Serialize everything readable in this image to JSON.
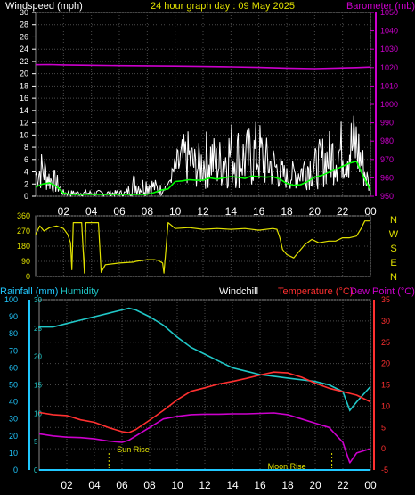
{
  "header": {
    "wind_title": "Windspeed (mph)",
    "date_title": "24 hour graph day : 09 May 2025",
    "baro_title": "Barometer (mb)"
  },
  "panel3_header": {
    "rain_title": "Rainfall (mm)",
    "hum_title": "Humidity",
    "wc_title": "Windchill",
    "temp_title": "Temperature (°C)",
    "dew_title": "Dew Point (°C)"
  },
  "x_ticks": [
    "02",
    "04",
    "06",
    "08",
    "10",
    "12",
    "14",
    "16",
    "18",
    "20",
    "22",
    "00"
  ],
  "compass": [
    "N",
    "W",
    "S",
    "E",
    "N"
  ],
  "annotations": {
    "sunrise": "Sun Rise",
    "moonrise": "Moon Rise"
  },
  "colors": {
    "wind": "#ffffff",
    "gust": "#ffffff",
    "wind_avg": "#00ff00",
    "baro": "#cc00cc",
    "direction": "#e0e000",
    "humidity": "#20c8c8",
    "temperature": "#ff3030",
    "dewpoint": "#cc00cc",
    "rain": "#20c8ff",
    "grid": "#4a4a4a"
  },
  "chart_data": [
    {
      "type": "line",
      "name_key": "wind_baro",
      "xlabel": "",
      "ylabel": "Windspeed (mph)",
      "ylim": [
        0,
        30
      ],
      "y2lim": [
        950,
        1050
      ],
      "x_ticks": [
        "02",
        "04",
        "06",
        "08",
        "10",
        "12",
        "14",
        "16",
        "18",
        "20",
        "22",
        "00"
      ],
      "y_ticks": [
        0,
        2,
        4,
        6,
        8,
        10,
        12,
        14,
        16,
        18,
        20,
        22,
        24,
        26,
        28,
        30
      ],
      "y2_ticks": [
        950,
        960,
        970,
        980,
        990,
        1000,
        1010,
        1020,
        1030,
        1040,
        1050
      ],
      "series": [
        {
          "name": "Windspeed (mph)",
          "role": "gust_envelope",
          "x": [
            0,
            0.5,
            1,
            1.5,
            2,
            2.5,
            3,
            3.5,
            4,
            4.5,
            5,
            5.5,
            6,
            6.5,
            7,
            7.5,
            8,
            8.5,
            9,
            9.5,
            10,
            10.5,
            11,
            11.5,
            12,
            12.5,
            13,
            13.5,
            14,
            14.5,
            15,
            15.5,
            16,
            16.5,
            17,
            17.5,
            18,
            18.5,
            19,
            19.5,
            20,
            20.5,
            21,
            21.5,
            22,
            22.5,
            23,
            23.5,
            24
          ],
          "y": [
            6,
            8,
            5,
            4,
            1,
            1,
            1,
            1,
            1,
            1,
            1,
            1,
            1,
            1,
            4,
            3,
            4,
            3,
            2,
            2,
            7,
            10,
            11,
            8,
            10,
            12,
            9,
            11,
            13,
            12,
            11,
            12,
            13,
            10,
            9,
            7,
            5,
            6,
            7,
            9,
            8,
            10,
            11,
            12,
            13,
            14,
            15,
            8,
            2
          ]
        },
        {
          "name": "Windspeed (mph)",
          "role": "wind_floor",
          "x": [
            0,
            2,
            3,
            5,
            7,
            9,
            9.5,
            12,
            15,
            18,
            20,
            22,
            23.5,
            24
          ],
          "y": [
            1,
            0,
            0,
            0,
            0,
            0,
            2,
            1,
            1,
            1,
            1,
            2,
            1,
            0
          ]
        },
        {
          "name": "",
          "role": "average",
          "x": [
            0,
            0.5,
            1,
            1.5,
            2,
            2.5,
            3,
            4,
            5,
            6,
            7,
            8,
            8.5,
            9,
            9.5,
            10,
            10.5,
            11,
            11.5,
            12,
            12.5,
            13,
            13.5,
            14,
            14.5,
            15,
            15.5,
            16,
            16.5,
            17,
            17.5,
            18,
            18.5,
            19,
            19.5,
            20,
            20.5,
            21,
            21.5,
            22,
            22.5,
            23,
            23.5,
            24
          ],
          "y": [
            1.5,
            2,
            2.2,
            1.6,
            0.5,
            0.3,
            0.3,
            0.3,
            0.3,
            0.3,
            0.3,
            0.3,
            0.6,
            1,
            1.2,
            2.4,
            2.5,
            2.7,
            2.6,
            2.6,
            3,
            2.8,
            3,
            3.2,
            3.1,
            2.9,
            3.3,
            3.2,
            3.1,
            3.2,
            2.8,
            2.1,
            1.8,
            1.9,
            2.4,
            3.1,
            3.4,
            3.9,
            4.4,
            4.9,
            5.4,
            5.7,
            3.2,
            1
          ]
        },
        {
          "name": "Barometer (mb)",
          "role": "barometer_axis2",
          "x": [
            0,
            1,
            2,
            4,
            6,
            8,
            10,
            12,
            14,
            16,
            18,
            20,
            22,
            23,
            24
          ],
          "y": [
            1021.5,
            1021.6,
            1021.4,
            1021.2,
            1021,
            1020.9,
            1020.8,
            1020.6,
            1020.4,
            1020.1,
            1019.7,
            1019.4,
            1019.8,
            1020,
            1020.3
          ]
        }
      ]
    },
    {
      "type": "line",
      "name_key": "direction",
      "ylabel": "",
      "ylim": [
        0,
        360
      ],
      "y_ticks": [
        0,
        90,
        180,
        270,
        360
      ],
      "series": [
        {
          "name": "",
          "x": [
            0,
            0.3,
            0.6,
            1,
            1.5,
            2,
            2.3,
            2.5,
            2.6,
            2.7,
            3.3,
            3.5,
            3.6,
            4.2,
            4.5,
            4.7,
            5,
            6,
            7,
            7.2,
            8,
            8.5,
            8.8,
            9.1,
            9.2,
            9.5,
            10,
            11,
            12,
            13,
            14,
            15,
            16,
            17,
            17.3,
            17.5,
            17.7,
            18,
            18.5,
            19,
            19.3,
            19.8,
            20.3,
            21,
            21.5,
            22,
            22.5,
            23,
            23.3,
            23.6,
            24
          ],
          "y": [
            250,
            300,
            270,
            290,
            300,
            285,
            250,
            200,
            40,
            320,
            320,
            20,
            320,
            320,
            320,
            25,
            70,
            80,
            85,
            90,
            100,
            100,
            95,
            80,
            20,
            320,
            285,
            290,
            280,
            285,
            280,
            285,
            275,
            285,
            280,
            230,
            160,
            130,
            110,
            160,
            190,
            220,
            200,
            210,
            210,
            230,
            230,
            240,
            280,
            330,
            330
          ]
        }
      ]
    },
    {
      "type": "line",
      "name_key": "temp_hum_rain",
      "ylim": [
        -5,
        35
      ],
      "y_ticks": [
        -5,
        0,
        5,
        10,
        15,
        20,
        25,
        30,
        35
      ],
      "y_left_rain_ticks": [
        0,
        10,
        20,
        30,
        40,
        50,
        60,
        70,
        80,
        90,
        100
      ],
      "y_left_hum_ticks": [
        0,
        5,
        10,
        15,
        20,
        25,
        30
      ],
      "series": [
        {
          "name": "Humidity",
          "x": [
            0,
            1,
            2,
            3,
            4,
            5,
            6,
            6.5,
            7,
            8,
            9,
            10,
            11,
            12,
            13,
            14,
            15,
            16,
            17,
            18,
            19,
            20,
            21,
            22,
            22.5,
            23,
            24
          ],
          "y": [
            84,
            84,
            86,
            88,
            90,
            92,
            94,
            95,
            94,
            90,
            85,
            78,
            72,
            68,
            64,
            60,
            58,
            56,
            55,
            54,
            53,
            52,
            50,
            46,
            35,
            40,
            49
          ]
        },
        {
          "name": "Temperature (°C)",
          "x": [
            0,
            1,
            2,
            3,
            4,
            5,
            6,
            6.5,
            7,
            8,
            9,
            10,
            11,
            12,
            13,
            14,
            15,
            16,
            17,
            18,
            19,
            20,
            21,
            22,
            23,
            24
          ],
          "y": [
            8.5,
            8,
            7.8,
            6.8,
            6.2,
            5,
            4,
            3.8,
            4.5,
            6.7,
            9,
            11.5,
            13.5,
            14.3,
            15.2,
            15.8,
            16.5,
            17.3,
            18,
            17.8,
            16.8,
            15.4,
            14.2,
            13.4,
            12.6,
            11
          ]
        },
        {
          "name": "Dew Point (°C)",
          "x": [
            0,
            1,
            2,
            3,
            4,
            5,
            6,
            6.5,
            7,
            8,
            9,
            10,
            11,
            12,
            13,
            14,
            15,
            16,
            17,
            18,
            19,
            20,
            21,
            22,
            22.5,
            23,
            24
          ],
          "y": [
            3.5,
            3,
            2.7,
            2.6,
            2.3,
            1.8,
            1.5,
            2,
            3,
            5,
            7,
            7.6,
            8,
            8.1,
            8.1,
            8.2,
            8.2,
            8.3,
            8.4,
            8,
            7,
            6,
            5,
            1.5,
            -3.3,
            -1,
            0
          ]
        },
        {
          "name": "Rainfall (mm)",
          "x": [
            0,
            24
          ],
          "y": [
            0,
            0
          ]
        }
      ]
    }
  ]
}
